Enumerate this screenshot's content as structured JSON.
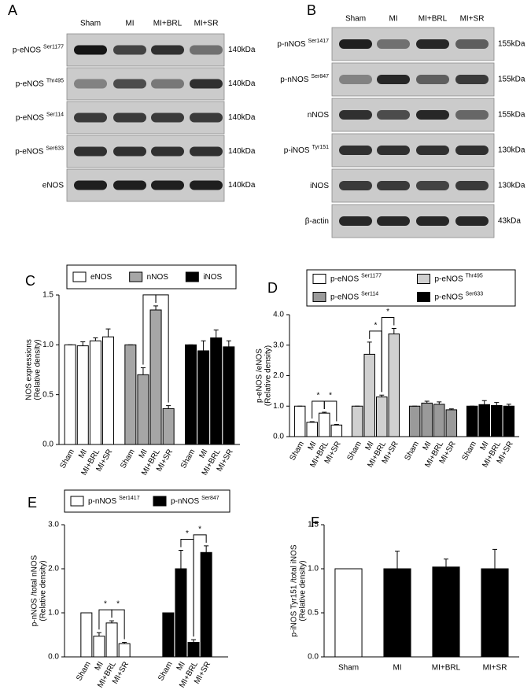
{
  "blots": [
    {
      "panel_label": "A",
      "lanes": [
        "Sham",
        "MI",
        "MI+BRL",
        "MI+SR"
      ],
      "rows": [
        {
          "protein": "p-eNOS",
          "site": "Ser1177",
          "kda": "140kDa"
        },
        {
          "protein": "p-eNOS",
          "site": "Thr495",
          "kda": "140kDa"
        },
        {
          "protein": "p-eNOS",
          "site": "Ser114",
          "kda": "140kDa"
        },
        {
          "protein": "p-eNOS",
          "site": "Ser633",
          "kda": "140kDa"
        },
        {
          "protein": "eNOS",
          "kda": "140kDa"
        }
      ]
    },
    {
      "panel_label": "B",
      "lanes": [
        "Sham",
        "MI",
        "MI+BRL",
        "MI+SR"
      ],
      "rows": [
        {
          "protein": "p-nNOS",
          "site": "Ser1417",
          "kda": "155kDa"
        },
        {
          "protein": "p-nNOS",
          "site": "Ser847",
          "kda": "155kDa"
        },
        {
          "protein": "nNOS",
          "kda": "155kDa"
        },
        {
          "protein": "p-iNOS",
          "site": "Tyr151",
          "kda": "130kDa"
        },
        {
          "protein": "iNOS",
          "kda": "130kDa"
        },
        {
          "protein": "β-actin",
          "kda": "43kDa"
        }
      ]
    }
  ],
  "chart_data": [
    {
      "type": "bar",
      "panel_label": "C",
      "ylabel": [
        "NOS expressions",
        "(Relative density)"
      ],
      "categories": [
        "Sham",
        "MI",
        "MI+BRL",
        "MI+SR"
      ],
      "series": [
        {
          "name": "eNOS",
          "color": "#ffffff",
          "values": [
            1.0,
            0.99,
            1.04,
            1.08
          ],
          "errors": [
            0,
            0.04,
            0.03,
            0.08
          ]
        },
        {
          "name": "nNOS",
          "color": "#a6a6a6",
          "values": [
            1.0,
            0.7,
            1.35,
            0.36
          ],
          "errors": [
            0,
            0.07,
            0.04,
            0.03
          ],
          "significance": [
            {
              "text": "*",
              "between": [
                "MI",
                "MI+BRL"
              ]
            },
            {
              "text": "*",
              "between": [
                "MI+BRL",
                "MI+SR"
              ]
            }
          ]
        },
        {
          "name": "iNOS",
          "color": "#000000",
          "values": [
            1.0,
            0.94,
            1.07,
            0.98
          ],
          "errors": [
            0,
            0.1,
            0.08,
            0.06
          ]
        }
      ],
      "ylim": [
        0,
        1.5
      ],
      "yticks": [
        {
          "value": 0,
          "label": "0.0"
        },
        {
          "value": 0.5,
          "label": "0.5"
        },
        {
          "value": 1,
          "label": "1.0"
        },
        {
          "value": 1.5,
          "label": "1.5"
        }
      ]
    },
    {
      "type": "bar",
      "panel_label": "D",
      "ylabel": [
        "p-eNOS /eNOS",
        "(Relative density)"
      ],
      "categories": [
        "Sham",
        "MI",
        "MI+BRL",
        "MI+SR"
      ],
      "series": [
        {
          "name": "p-eNOS",
          "superscript": "Ser1177",
          "color": "#ffffff",
          "values": [
            1.0,
            0.47,
            0.77,
            0.38
          ],
          "errors": [
            0,
            0.02,
            0.03,
            0.02
          ],
          "significance": [
            {
              "text": "*",
              "between": [
                "MI",
                "MI+BRL"
              ]
            },
            {
              "text": "*",
              "between": [
                "MI+BRL",
                "MI+SR"
              ]
            }
          ]
        },
        {
          "name": "p-eNOS",
          "superscript": "Thr495",
          "color": "#d0d0d0",
          "values": [
            1.0,
            2.7,
            1.3,
            3.37
          ],
          "errors": [
            0,
            0.4,
            0.06,
            0.18
          ],
          "significance": [
            {
              "text": "*",
              "between": [
                "MI",
                "MI+BRL"
              ]
            },
            {
              "text": "*",
              "between": [
                "MI+BRL",
                "MI+SR"
              ]
            }
          ]
        },
        {
          "name": "p-eNOS",
          "superscript": "Ser114",
          "color": "#9a9a9a",
          "values": [
            1.0,
            1.1,
            1.06,
            0.88
          ],
          "errors": [
            0,
            0.06,
            0.08,
            0.03
          ]
        },
        {
          "name": "p-eNOS",
          "superscript": "Ser633",
          "color": "#000000",
          "values": [
            1.0,
            1.05,
            1.02,
            1.0
          ],
          "errors": [
            0,
            0.13,
            0.1,
            0.06
          ]
        }
      ],
      "ylim": [
        0,
        4
      ],
      "yticks": [
        {
          "value": 0,
          "label": "0.0"
        },
        {
          "value": 1,
          "label": "1.0"
        },
        {
          "value": 2,
          "label": "2.0"
        },
        {
          "value": 3,
          "label": "3.0"
        },
        {
          "value": 4,
          "label": "4.0"
        }
      ]
    },
    {
      "type": "bar",
      "panel_label": "E",
      "ylabel": [
        "p-nNOS /total nNOS",
        "(Relative density)"
      ],
      "categories": [
        "Sham",
        "MI",
        "MI+BRL",
        "MI+SR"
      ],
      "series": [
        {
          "name": "p-nNOS",
          "superscript": "Ser1417",
          "color": "#ffffff",
          "values": [
            1.0,
            0.47,
            0.77,
            0.3
          ],
          "errors": [
            0,
            0.08,
            0.05,
            0.03
          ],
          "significance": [
            {
              "text": "*",
              "between": [
                "MI",
                "MI+BRL"
              ]
            },
            {
              "text": "*",
              "between": [
                "MI+BRL",
                "MI+SR"
              ]
            }
          ]
        },
        {
          "name": "p-nNOS",
          "superscript": "Ser847",
          "color": "#000000",
          "values": [
            1.0,
            2.0,
            0.33,
            2.37
          ],
          "errors": [
            0,
            0.42,
            0.06,
            0.15
          ],
          "significance": [
            {
              "text": "*",
              "between": [
                "MI",
                "MI+BRL"
              ]
            },
            {
              "text": "*",
              "between": [
                "MI+BRL",
                "MI+SR"
              ]
            }
          ]
        }
      ],
      "ylim": [
        0,
        3
      ],
      "yticks": [
        {
          "value": 0,
          "label": "0.0"
        },
        {
          "value": 1,
          "label": "1.0"
        },
        {
          "value": 2,
          "label": "2.0"
        },
        {
          "value": 3,
          "label": "3.0"
        }
      ]
    },
    {
      "type": "bar",
      "panel_label": "F",
      "ylabel": [
        "p-iNOS Tyr151 /total iNOS",
        "(Relative density)"
      ],
      "categories": [
        "Sham",
        "MI",
        "MI+BRL",
        "MI+SR"
      ],
      "values": [
        1.0,
        1.0,
        1.02,
        1.0
      ],
      "errors": [
        0,
        0.2,
        0.09,
        0.22
      ],
      "colors": [
        "#ffffff",
        "#000000",
        "#000000",
        "#000000"
      ],
      "ylim": [
        0,
        1.5
      ],
      "yticks": [
        {
          "value": 0,
          "label": "0.0"
        },
        {
          "value": 0.5,
          "label": "0.5"
        },
        {
          "value": 1,
          "label": "1.0"
        },
        {
          "value": 1.5,
          "label": "1.5"
        }
      ]
    }
  ]
}
